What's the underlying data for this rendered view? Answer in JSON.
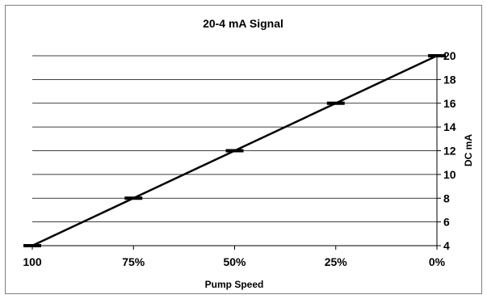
{
  "chart_data": {
    "type": "line",
    "title": "20-4 mA Signal",
    "xlabel": "Pump Speed",
    "ylabel": "DC mA",
    "categories": [
      "100",
      "75%",
      "50%",
      "25%",
      "0%"
    ],
    "series": [
      {
        "values": [
          4,
          8,
          12,
          16,
          20
        ]
      }
    ],
    "ylim": [
      4,
      20
    ],
    "yticks": [
      4,
      6,
      8,
      10,
      12,
      14,
      16,
      18,
      20
    ],
    "y_axis_position": "right",
    "grid": true,
    "legend": "none",
    "line_color": "#000000",
    "grid_color": "#000000",
    "frame_color": "#808080"
  }
}
